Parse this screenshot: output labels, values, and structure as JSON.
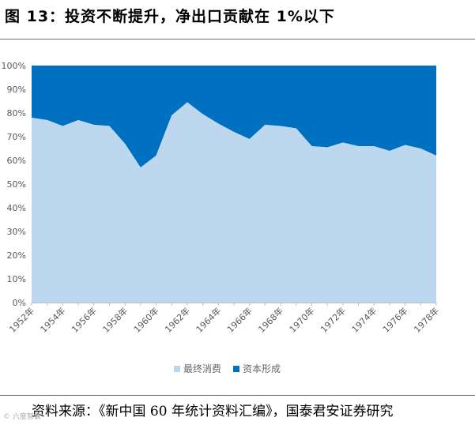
{
  "header": {
    "title": "图 13：投资不断提升，净出口贡献在 1%以下"
  },
  "chart_data": {
    "type": "area",
    "stacked": true,
    "percent": true,
    "x": [
      1952,
      1953,
      1954,
      1955,
      1956,
      1957,
      1958,
      1959,
      1960,
      1961,
      1962,
      1963,
      1964,
      1965,
      1966,
      1967,
      1968,
      1969,
      1970,
      1971,
      1972,
      1973,
      1974,
      1975,
      1976,
      1977,
      1978
    ],
    "x_tick_labels": [
      "1952年",
      "1954年",
      "1956年",
      "1958年",
      "1960年",
      "1962年",
      "1964年",
      "1966年",
      "1968年",
      "1970年",
      "1972年",
      "1974年",
      "1976年",
      "1978年"
    ],
    "series": [
      {
        "name": "最终消费",
        "color": "#bdd7ee",
        "values": [
          78,
          77,
          74.5,
          77,
          75,
          74.5,
          67,
          57,
          62,
          79,
          84.5,
          79.5,
          75.5,
          72,
          69,
          75,
          74.5,
          73.5,
          66,
          65.5,
          67.5,
          66,
          66,
          64,
          66.5,
          65,
          62
        ]
      },
      {
        "name": "资本形成",
        "color": "#0070c0",
        "values": [
          22,
          23,
          25.5,
          23,
          25,
          25.5,
          33,
          43,
          38,
          21,
          15.5,
          20.5,
          24.5,
          28,
          31,
          25,
          25.5,
          26.5,
          34,
          34.5,
          32.5,
          34,
          34,
          36,
          33.5,
          35,
          38
        ]
      }
    ],
    "y_ticks": [
      "0%",
      "10%",
      "20%",
      "30%",
      "40%",
      "50%",
      "60%",
      "70%",
      "80%",
      "90%",
      "100%"
    ],
    "ylim": [
      0,
      100
    ],
    "grid": false,
    "legend_position": "bottom"
  },
  "legend": {
    "items": [
      {
        "label": "最终消费",
        "color": "#bdd7ee"
      },
      {
        "label": "资本形成",
        "color": "#0070c0"
      }
    ]
  },
  "footer": {
    "source": "资料来源：《新中国 60 年统计资料汇编》，国泰君安证券研究",
    "watermark": "© 六度智囊"
  }
}
